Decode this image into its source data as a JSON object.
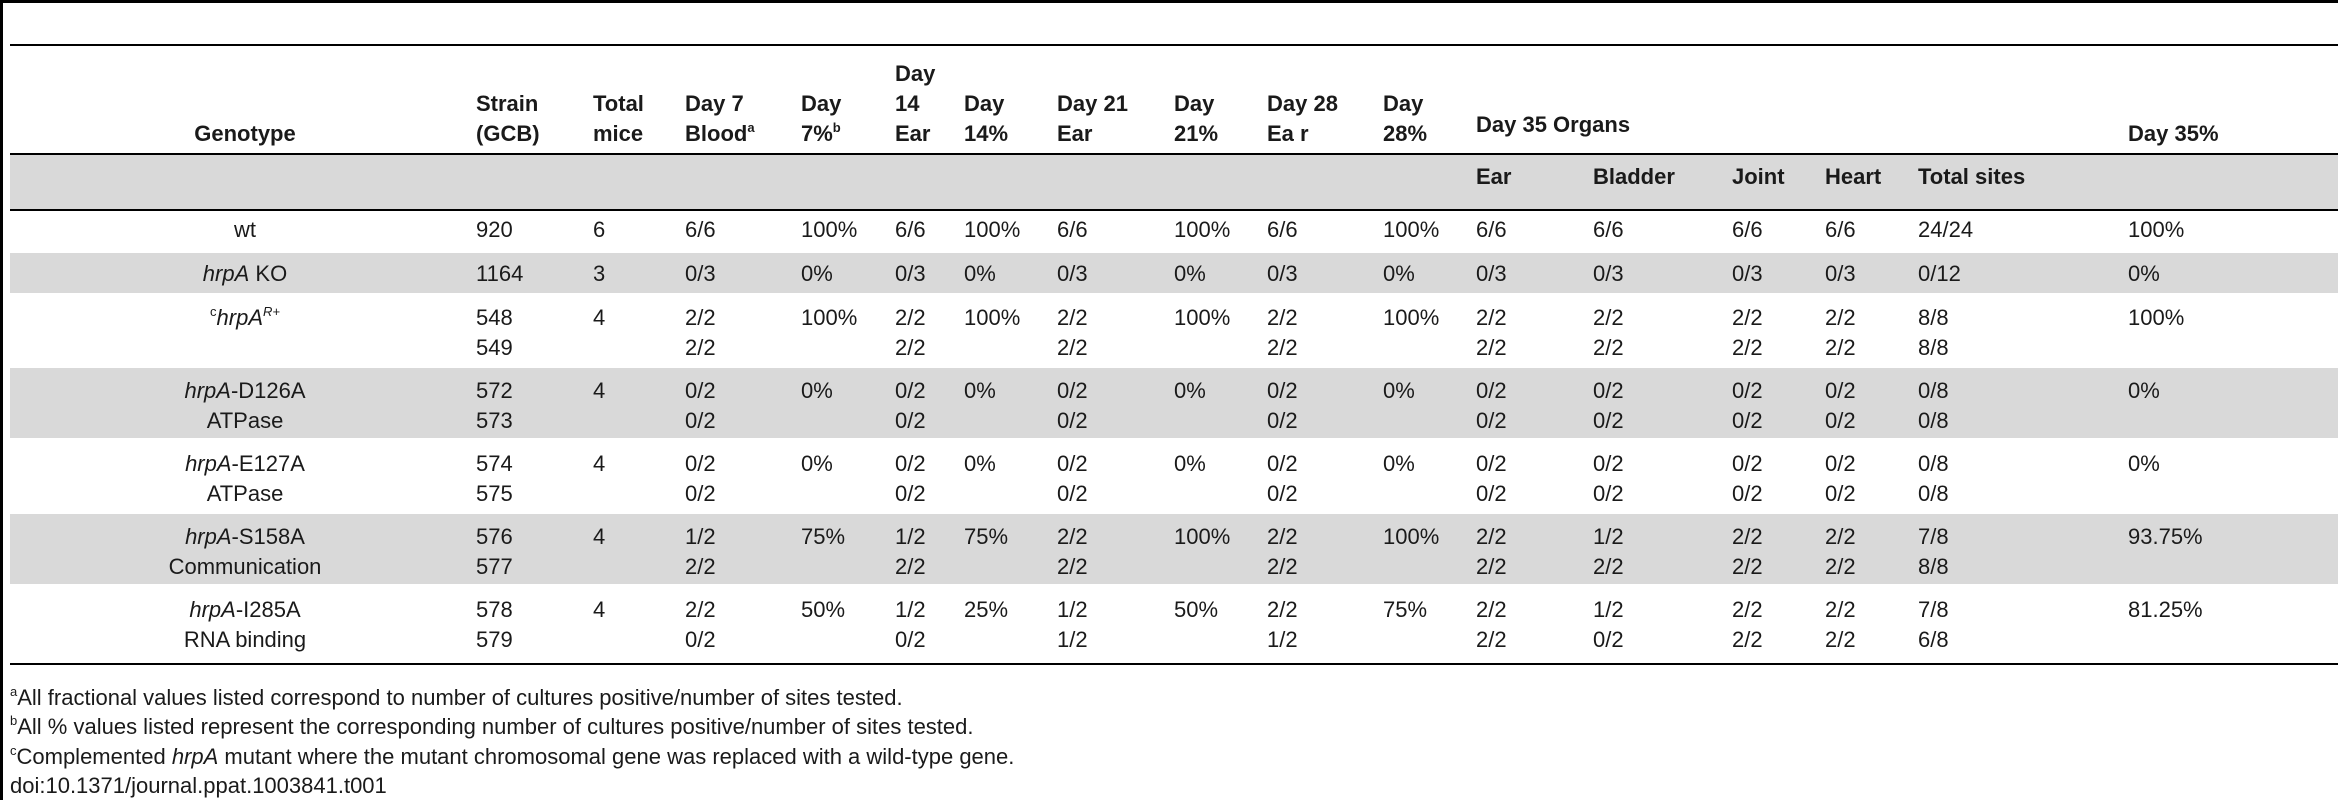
{
  "table": {
    "headers": {
      "genotype": "Genotype",
      "strain": [
        "Strain",
        "(GCB)"
      ],
      "total_mice": [
        "Total",
        "mice"
      ],
      "day7_blood": [
        "Day 7",
        "Blood",
        "a"
      ],
      "day7_pct": [
        "Day",
        "7%",
        "b"
      ],
      "day14_ear": [
        "Day",
        "14",
        "Ear"
      ],
      "day14_pct": [
        "Day",
        "14%"
      ],
      "day21_ear": [
        "Day 21",
        "Ear"
      ],
      "day21_pct": [
        "Day",
        "21%"
      ],
      "day28_ear": [
        "Day 28",
        "Ea r"
      ],
      "day28_pct": [
        "Day",
        "28%"
      ],
      "day35_organs": "Day 35 Organs",
      "day35_pct": "Day 35%",
      "organs": [
        "Ear",
        "Bladder",
        "Joint",
        "Heart",
        "Total sites"
      ]
    },
    "rows": [
      {
        "g1_i": "",
        "g1_n": "wt",
        "g1_sup": "",
        "g1_pre": "",
        "g2": "",
        "strain": [
          "920",
          ""
        ],
        "mice": "6",
        "d7b": [
          "6/6",
          ""
        ],
        "d7p": "100%",
        "d14e": [
          "6/6",
          ""
        ],
        "d14p": "100%",
        "d21e": [
          "6/6",
          ""
        ],
        "d21p": "100%",
        "d28e": [
          "6/6",
          ""
        ],
        "d28p": "100%",
        "ear": [
          "6/6",
          ""
        ],
        "bladder": [
          "6/6",
          ""
        ],
        "joint": [
          "6/6",
          ""
        ],
        "heart": [
          "6/6",
          ""
        ],
        "total": [
          "24/24",
          ""
        ],
        "d35p": "100%"
      },
      {
        "g1_i": "hrpA",
        "g1_n": " KO",
        "g1_sup": "",
        "g1_pre": "",
        "g2": "",
        "strain": [
          "1164",
          ""
        ],
        "mice": "3",
        "d7b": [
          "0/3",
          ""
        ],
        "d7p": "0%",
        "d14e": [
          "0/3",
          ""
        ],
        "d14p": "0%",
        "d21e": [
          "0/3",
          ""
        ],
        "d21p": "0%",
        "d28e": [
          "0/3",
          ""
        ],
        "d28p": "0%",
        "ear": [
          "0/3",
          ""
        ],
        "bladder": [
          "0/3",
          ""
        ],
        "joint": [
          "0/3",
          ""
        ],
        "heart": [
          "0/3",
          ""
        ],
        "total": [
          "0/12",
          ""
        ],
        "d35p": "0%"
      },
      {
        "g1_i": "hrpA",
        "g1_n": "",
        "g1_sup": "R+",
        "g1_pre": "c",
        "g2": "",
        "strain": [
          "548",
          "549"
        ],
        "mice": "4",
        "d7b": [
          "2/2",
          "2/2"
        ],
        "d7p": "100%",
        "d14e": [
          "2/2",
          "2/2"
        ],
        "d14p": "100%",
        "d21e": [
          "2/2",
          "2/2"
        ],
        "d21p": "100%",
        "d28e": [
          "2/2",
          "2/2"
        ],
        "d28p": "100%",
        "ear": [
          "2/2",
          "2/2"
        ],
        "bladder": [
          "2/2",
          "2/2"
        ],
        "joint": [
          "2/2",
          "2/2"
        ],
        "heart": [
          "2/2",
          "2/2"
        ],
        "total": [
          "8/8",
          "8/8"
        ],
        "d35p": "100%"
      },
      {
        "g1_i": "hrpA",
        "g1_n": "-D126A",
        "g1_sup": "",
        "g1_pre": "",
        "g2": "ATPase",
        "strain": [
          "572",
          "573"
        ],
        "mice": "4",
        "d7b": [
          "0/2",
          "0/2"
        ],
        "d7p": "0%",
        "d14e": [
          "0/2",
          "0/2"
        ],
        "d14p": "0%",
        "d21e": [
          "0/2",
          "0/2"
        ],
        "d21p": "0%",
        "d28e": [
          "0/2",
          "0/2"
        ],
        "d28p": "0%",
        "ear": [
          "0/2",
          "0/2"
        ],
        "bladder": [
          "0/2",
          "0/2"
        ],
        "joint": [
          "0/2",
          "0/2"
        ],
        "heart": [
          "0/2",
          "0/2"
        ],
        "total": [
          "0/8",
          "0/8"
        ],
        "d35p": "0%"
      },
      {
        "g1_i": "hrpA",
        "g1_n": "-E127A",
        "g1_sup": "",
        "g1_pre": "",
        "g2": "ATPase",
        "strain": [
          "574",
          "575"
        ],
        "mice": "4",
        "d7b": [
          "0/2",
          "0/2"
        ],
        "d7p": "0%",
        "d14e": [
          "0/2",
          "0/2"
        ],
        "d14p": "0%",
        "d21e": [
          "0/2",
          "0/2"
        ],
        "d21p": "0%",
        "d28e": [
          "0/2",
          "0/2"
        ],
        "d28p": "0%",
        "ear": [
          "0/2",
          "0/2"
        ],
        "bladder": [
          "0/2",
          "0/2"
        ],
        "joint": [
          "0/2",
          "0/2"
        ],
        "heart": [
          "0/2",
          "0/2"
        ],
        "total": [
          "0/8",
          "0/8"
        ],
        "d35p": "0%"
      },
      {
        "g1_i": "hrpA",
        "g1_n": "-S158A",
        "g1_sup": "",
        "g1_pre": "",
        "g2": "Communication",
        "strain": [
          "576",
          "577"
        ],
        "mice": "4",
        "d7b": [
          "1/2",
          "2/2"
        ],
        "d7p": "75%",
        "d14e": [
          "1/2",
          "2/2"
        ],
        "d14p": "75%",
        "d21e": [
          "2/2",
          "2/2"
        ],
        "d21p": "100%",
        "d28e": [
          "2/2",
          "2/2"
        ],
        "d28p": "100%",
        "ear": [
          "2/2",
          "2/2"
        ],
        "bladder": [
          "1/2",
          "2/2"
        ],
        "joint": [
          "2/2",
          "2/2"
        ],
        "heart": [
          "2/2",
          "2/2"
        ],
        "total": [
          "7/8",
          "8/8"
        ],
        "d35p": "93.75%"
      },
      {
        "g1_i": "hrpA",
        "g1_n": "-I285A",
        "g1_sup": "",
        "g1_pre": "",
        "g2": "RNA binding",
        "strain": [
          "578",
          "579"
        ],
        "mice": "4",
        "d7b": [
          "2/2",
          "0/2"
        ],
        "d7p": "50%",
        "d14e": [
          "1/2",
          "0/2"
        ],
        "d14p": "25%",
        "d21e": [
          "1/2",
          "1/2"
        ],
        "d21p": "50%",
        "d28e": [
          "2/2",
          "1/2"
        ],
        "d28p": "75%",
        "ear": [
          "2/2",
          "2/2"
        ],
        "bladder": [
          "1/2",
          "0/2"
        ],
        "joint": [
          "2/2",
          "2/2"
        ],
        "heart": [
          "2/2",
          "2/2"
        ],
        "total": [
          "7/8",
          "6/8"
        ],
        "d35p": "81.25%"
      }
    ]
  },
  "footnotes": {
    "a_mark": "a",
    "a_text": "All fractional values listed correspond to number of cultures positive/number of sites tested.",
    "b_mark": "b",
    "b_text": "All % values listed represent the corresponding number of cultures positive/number of sites tested.",
    "c_mark": "c",
    "c_before": "Complemented ",
    "c_italic": "hrpA",
    "c_after": " mutant where the mutant chromosomal gene was replaced with a wild-type gene.",
    "doi": "doi:10.1371/journal.ppat.1003841.t001"
  }
}
